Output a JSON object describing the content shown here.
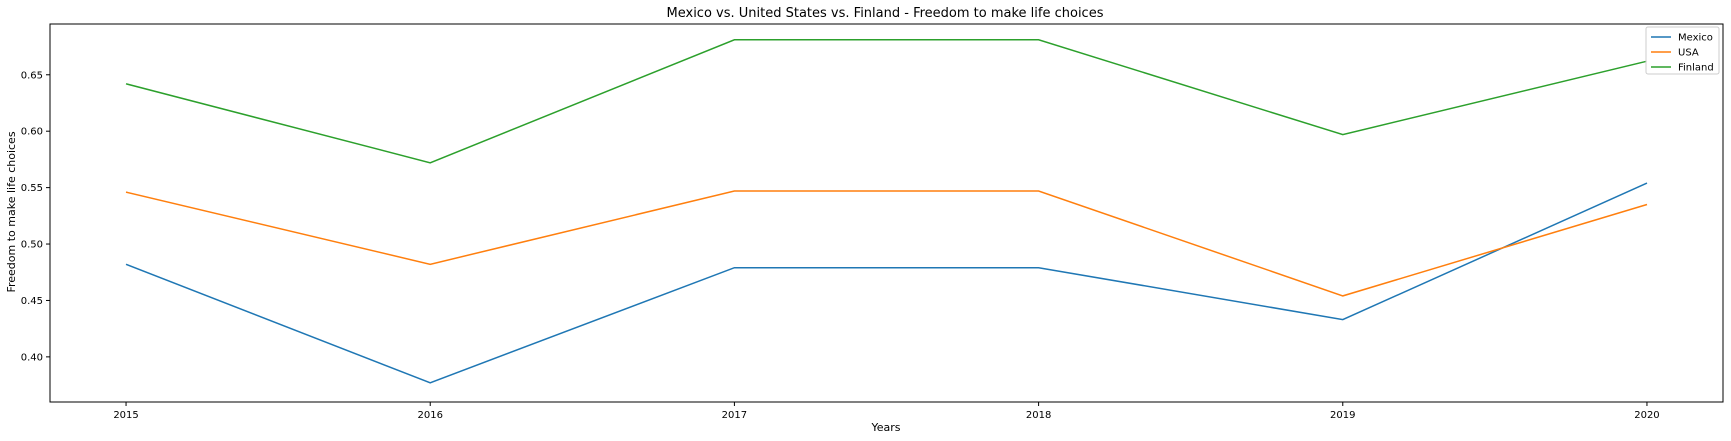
{
  "chart_data": {
    "type": "line",
    "title": "Mexico vs. United States vs. Finland - Freedom to make life choices",
    "xlabel": "Years",
    "ylabel": "Freedom to make life choices",
    "x": [
      "2015",
      "2016",
      "2017",
      "2018",
      "2019",
      "2020"
    ],
    "xlim": [
      2014.75,
      2020.25
    ],
    "ylim": [
      0.36,
      0.695
    ],
    "yticks": [
      "0.40",
      "0.45",
      "0.50",
      "0.55",
      "0.60",
      "0.65"
    ],
    "grid": false,
    "legend_position": "top-right",
    "series": [
      {
        "name": "Mexico",
        "color": "#1f77b4",
        "values": [
          0.482,
          0.377,
          0.479,
          0.479,
          0.433,
          0.554
        ]
      },
      {
        "name": "USA",
        "color": "#ff7f0e",
        "values": [
          0.546,
          0.482,
          0.547,
          0.547,
          0.454,
          0.535
        ]
      },
      {
        "name": "Finland",
        "color": "#2ca02c",
        "values": [
          0.642,
          0.572,
          0.681,
          0.681,
          0.597,
          0.662
        ]
      }
    ]
  }
}
